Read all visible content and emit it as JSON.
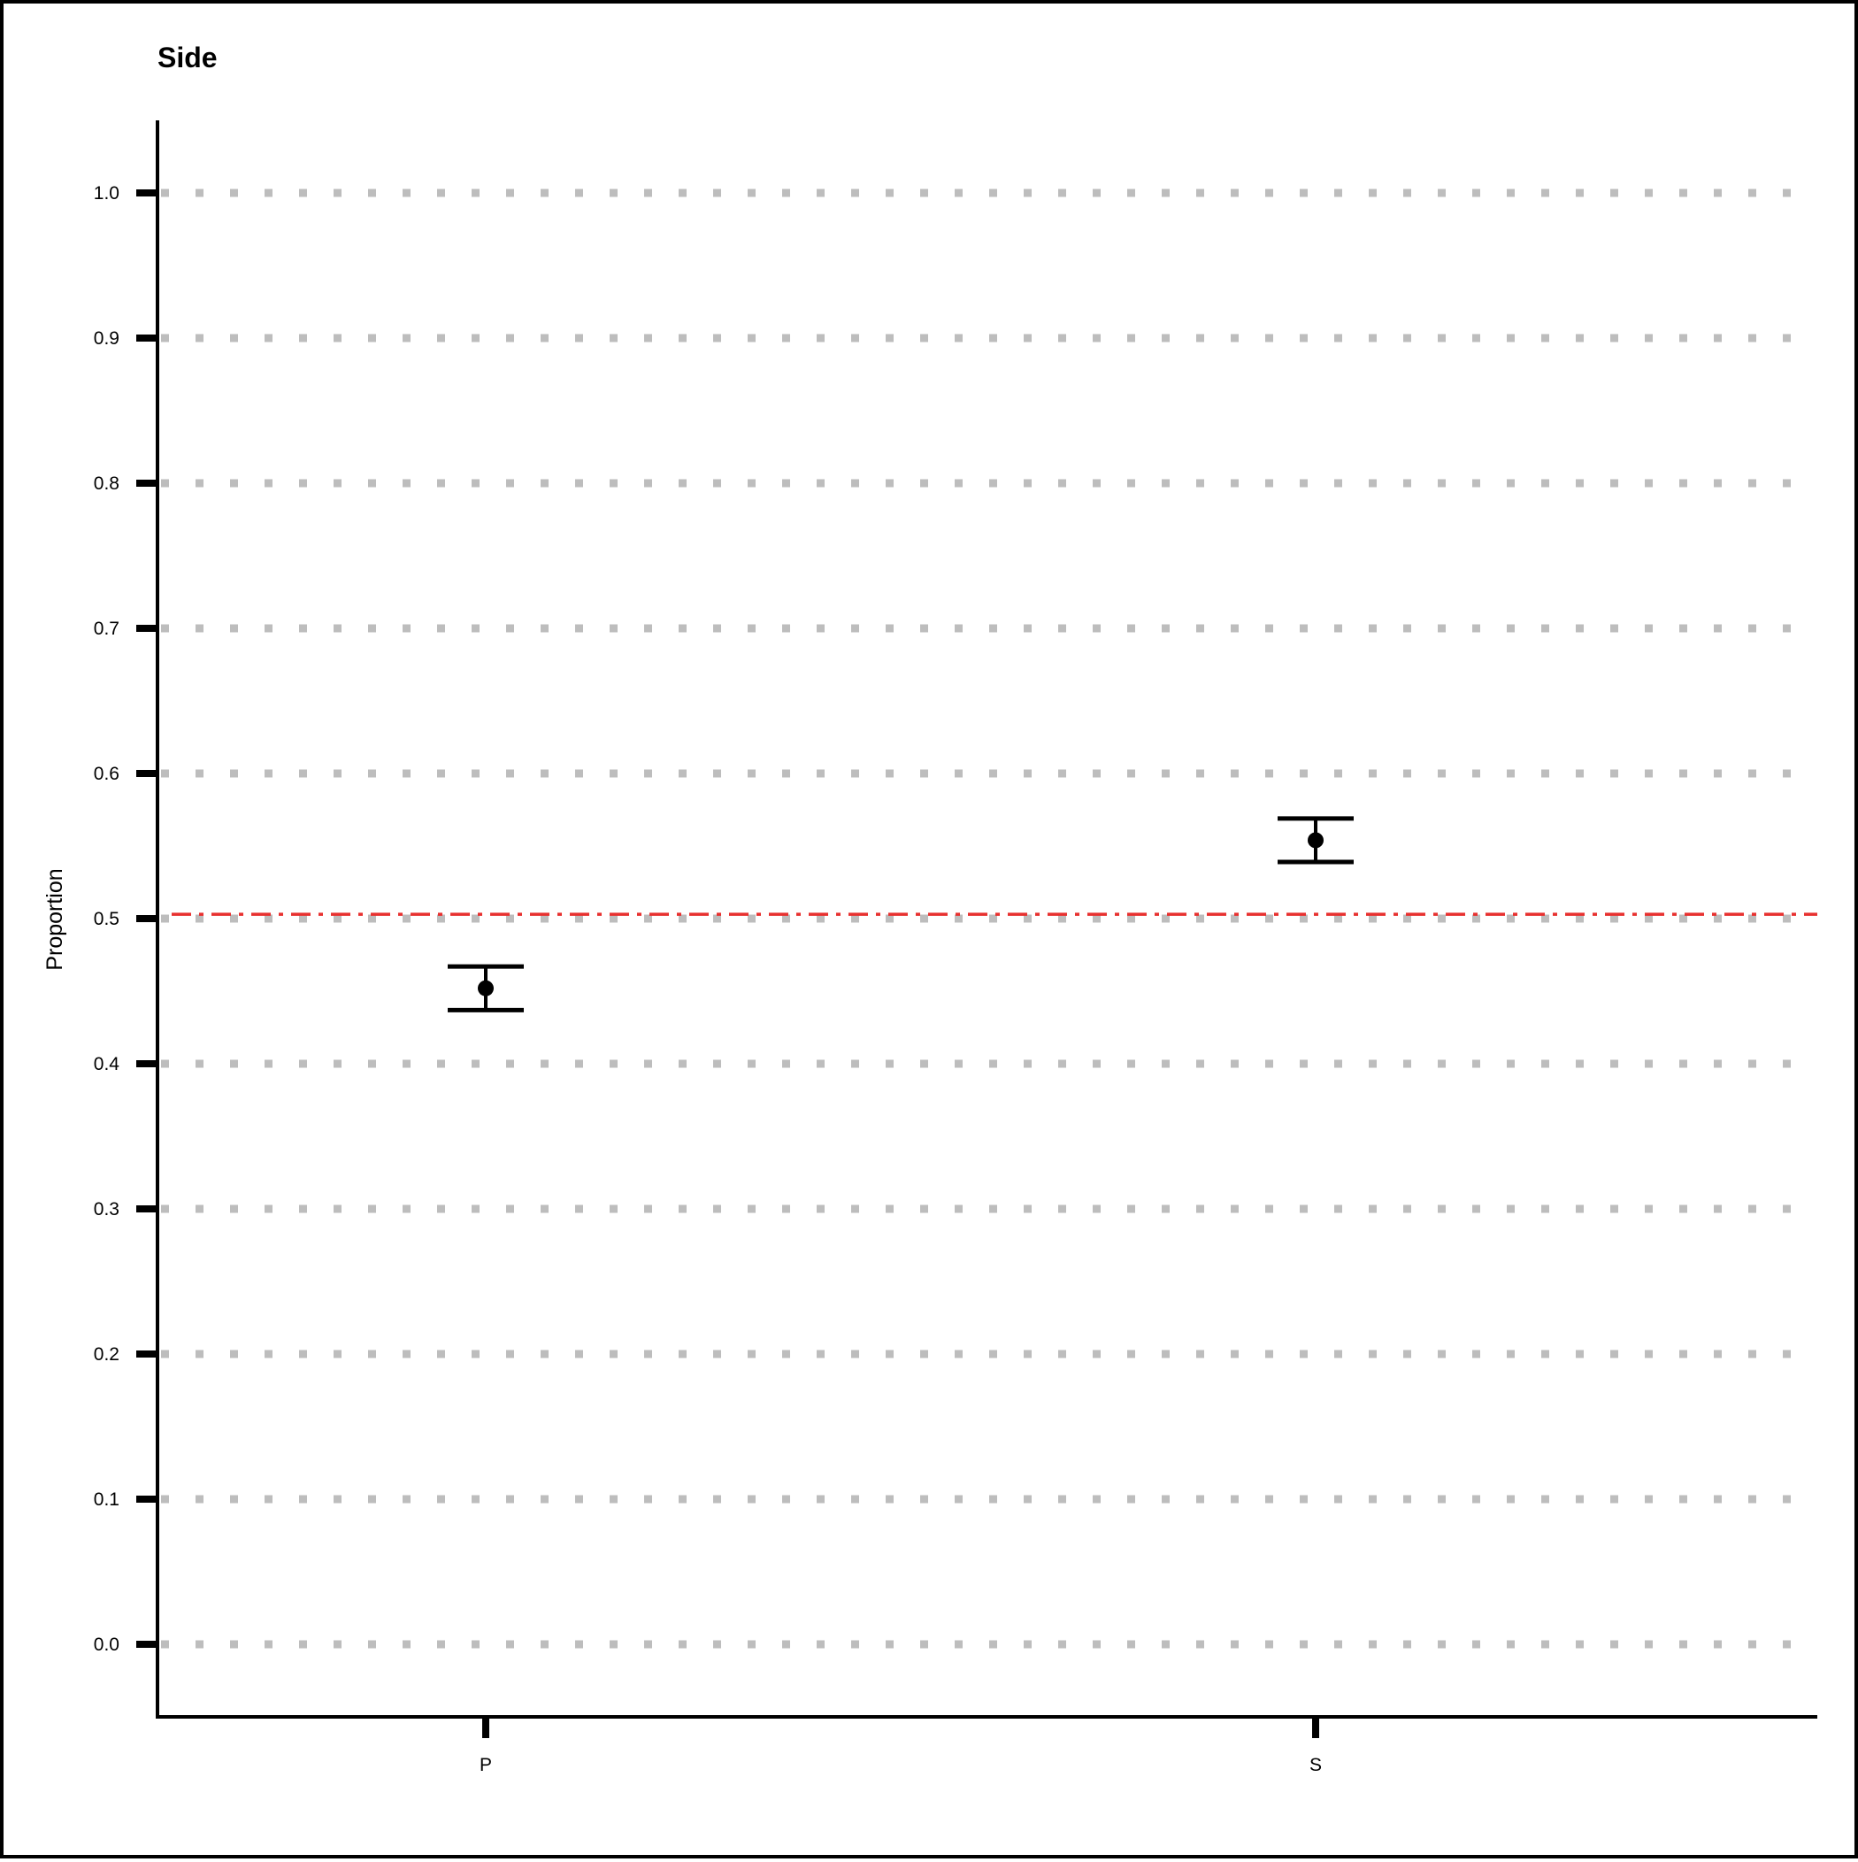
{
  "chart_data": {
    "type": "scatter",
    "title": "Side",
    "xlabel": "",
    "ylabel": "Proportion",
    "categories": [
      "P",
      "S"
    ],
    "points": [
      {
        "category": "P",
        "value": 0.452,
        "lower": 0.437,
        "upper": 0.467
      },
      {
        "category": "S",
        "value": 0.554,
        "lower": 0.539,
        "upper": 0.569
      }
    ],
    "reference_line": {
      "value": 0.503,
      "color": "#e8302f",
      "style": "dash-dot"
    },
    "ylim": [
      -0.05,
      1.05
    ],
    "yticks": [
      "0.0",
      "0.1",
      "0.2",
      "0.3",
      "0.4",
      "0.5",
      "0.6",
      "0.7",
      "0.8",
      "0.9",
      "1.0"
    ],
    "grid": "horizontal-dotted",
    "grid_color": "#bdbdbd",
    "point_color": "#000000",
    "legend": "none"
  }
}
